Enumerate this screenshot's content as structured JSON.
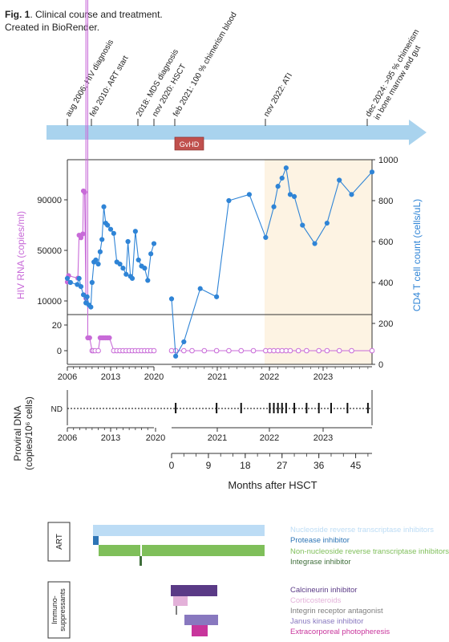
{
  "caption": {
    "label": "Fig. 1",
    "text": ". Clinical course and treatment.",
    "credit": "Created in BioRender."
  },
  "timeline": {
    "events": [
      {
        "label": "aug 2006: HIV diagnosis"
      },
      {
        "label": "feb 2010: ART start"
      },
      {
        "label": "2018: MDS diagnosis"
      },
      {
        "label": "nov 2020: HSCT"
      },
      {
        "label": "feb 2021: 100 % chimerism blood"
      },
      {
        "label": "nov 2022: ATI"
      },
      {
        "label": "dec 2024: >95 % chimerism",
        "label2": "in bone marrow and gut"
      }
    ],
    "gvhd_label": "GvHD",
    "gvhd_color": "#c0504d",
    "arrow_color": "#a9d3ee"
  },
  "chart_data": [
    {
      "type": "line",
      "ylabel_left": "HIV RNA (copies/ml)",
      "ylabel_right": "CD4 T cell count (cells/uL)",
      "left_ticks_upper": [
        "10000",
        "50000",
        "90000"
      ],
      "left_ticks_lower": [
        "0",
        "20"
      ],
      "right_ticks": [
        "0",
        "200",
        "400",
        "600",
        "800",
        "1000"
      ],
      "x_ticks_pre": [
        "2006",
        "2013",
        "2020"
      ],
      "x_ticks_post": [
        "2021",
        "2022",
        "2023"
      ],
      "ylim_right": [
        0,
        1000
      ],
      "shaded_region_color": "#fdf3e3",
      "series": [
        {
          "color": "#c86bd8",
          "pre_hsct": {
            "x": [
              2006.0,
              2006.2,
              2007.7,
              2007.9,
              2008.2,
              2008.5,
              2008.6,
              2008.8,
              2009.0,
              2009.1,
              2009.3,
              2009.6,
              2010.0,
              2010.2,
              2010.5,
              2011.0,
              2011.3,
              2011.6,
              2011.9,
              2012.2,
              2012.5,
              2012.8,
              2013.5,
              2014.0,
              2014.5,
              2015.0,
              2015.5,
              2016.0,
              2016.5,
              2017.0,
              2017.5,
              2018.0,
              2018.5,
              2019.0,
              2019.5,
              2020.0
            ],
            "y": [
              25000,
              30000,
              28000,
              62000,
              60000,
              63000,
              97000,
              96000,
              12000,
              8000,
              10,
              10,
              0,
              0,
              0,
              0,
              10,
              10,
              10,
              10,
              10,
              10,
              0,
              0,
              0,
              0,
              0,
              0,
              0,
              0,
              0,
              0,
              0,
              0,
              0,
              0
            ]
          },
          "post_hsct_months": {
            "x": [
              0,
              1,
              3,
              5,
              8,
              11,
              14,
              17,
              20,
              23,
              24,
              25,
              26,
              27,
              28,
              29,
              31,
              33,
              36,
              38,
              41,
              44,
              49
            ],
            "y": [
              0,
              0,
              0,
              0,
              0,
              0,
              0,
              0,
              0,
              0,
              0,
              0,
              0,
              0,
              0,
              0,
              0,
              0,
              0,
              0,
              0,
              0,
              0
            ]
          }
        },
        {
          "color": "#2f84d6",
          "pre_hsct": {
            "x": [
              2006.0,
              2006.5,
              2007.6,
              2007.9,
              2008.2,
              2008.6,
              2009.0,
              2009.2,
              2009.5,
              2009.8,
              2010.0,
              2010.3,
              2010.6,
              2011.0,
              2011.3,
              2011.6,
              2011.9,
              2012.2,
              2012.5,
              2013.0,
              2013.5,
              2014.0,
              2014.5,
              2015.0,
              2015.5,
              2015.8,
              2016.2,
              2016.5,
              2017.0,
              2017.5,
              2018.0,
              2018.5,
              2019.0,
              2019.5,
              2020.0
            ],
            "y": [
              420,
              400,
              390,
              420,
              380,
              340,
              300,
              330,
              290,
              280,
              400,
              500,
              510,
              490,
              550,
              610,
              770,
              690,
              680,
              660,
              640,
              500,
              490,
              470,
              440,
              600,
              430,
              420,
              650,
              510,
              480,
              470,
              410,
              540,
              590
            ]
          },
          "post_hsct_months": {
            "x": [
              0,
              1,
              3,
              7,
              11,
              14,
              19,
              23,
              25,
              26,
              27,
              28,
              29,
              30,
              32,
              35,
              38,
              41,
              44,
              49
            ],
            "y": [
              320,
              40,
              110,
              370,
              330,
              800,
              830,
              620,
              770,
              870,
              910,
              960,
              830,
              820,
              680,
              590,
              690,
              900,
              830,
              940
            ]
          }
        }
      ]
    },
    {
      "type": "scatter",
      "ylabel": "Proviral DNA (copies/10⁶ cells)",
      "ylabel_line1": "Proviral DNA",
      "ylabel_line2": "(copies/10⁶ cells)",
      "y_category": "ND",
      "x_ticks_pre": [
        "2006",
        "2013",
        "2020"
      ],
      "x_ticks_post": [
        "2021",
        "2022",
        "2023"
      ],
      "x_months_ticks": [
        "0",
        "9",
        "18",
        "27",
        "36",
        "45"
      ],
      "xlabel": "Months after HSCT",
      "points_months": [
        1,
        11,
        17,
        24,
        25,
        26,
        27,
        28,
        30,
        33,
        36,
        39,
        43,
        48
      ],
      "values": [
        "ND",
        "ND",
        "ND",
        "ND",
        "ND",
        "ND",
        "ND",
        "ND",
        "ND",
        "ND",
        "ND",
        "ND",
        "ND",
        "ND"
      ]
    }
  ],
  "therapy": {
    "groups": [
      {
        "label": "ART"
      },
      {
        "label_line1": "Immuno-",
        "label_line2": "suppressants"
      }
    ],
    "legend": [
      {
        "label": "Nucleoside reverse transcriptase inhibitors",
        "color": "#bcdcf5"
      },
      {
        "label": "Protease inhibitor",
        "color": "#2e75b6"
      },
      {
        "label": "Non-nucleoside reverse transcriptase inhibitors",
        "color": "#7fbf5a"
      },
      {
        "label": "Integrase inhibitor",
        "color": "#3f6e3b"
      },
      {
        "label": "Calcineurin inhibitor",
        "color": "#5a3a86"
      },
      {
        "label": "Corticosteroids",
        "color": "#e3b1d9"
      },
      {
        "label": "Integrin receptor antagonist",
        "color": "#7f7f7f"
      },
      {
        "label": "Janus kinase inhibitor",
        "color": "#8878bf"
      },
      {
        "label": "Extracorporeal photopheresis",
        "color": "#c8359c"
      }
    ]
  }
}
